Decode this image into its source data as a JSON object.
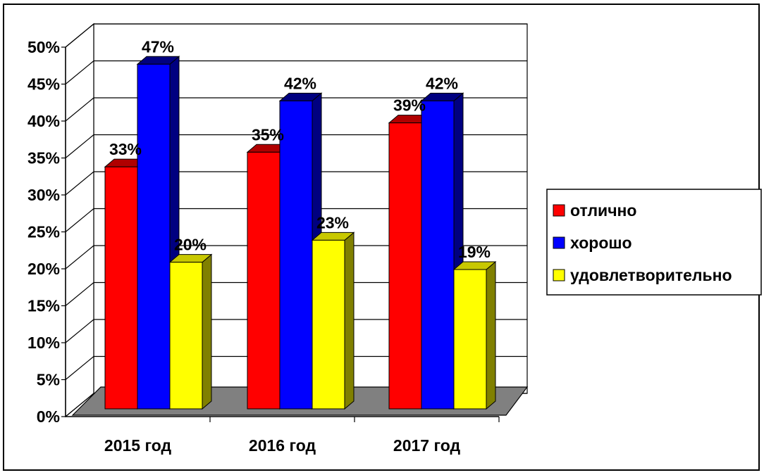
{
  "chart_data": {
    "type": "bar",
    "categories": [
      "2015 год",
      "2016 год",
      "2017 год"
    ],
    "series": [
      {
        "name": "отлично",
        "values": [
          33,
          35,
          39
        ],
        "labels": [
          "33%",
          "35%",
          "39%"
        ]
      },
      {
        "name": "хорошо",
        "values": [
          47,
          42,
          42
        ],
        "labels": [
          "47%",
          "42%",
          "42%"
        ]
      },
      {
        "name": "удовлетворительно",
        "values": [
          20,
          23,
          19
        ],
        "labels": [
          "20%",
          "23%",
          "19%"
        ]
      }
    ],
    "ylim": [
      0,
      50
    ],
    "yticks": [
      "0%",
      "5%",
      "10%",
      "15%",
      "20%",
      "25%",
      "30%",
      "35%",
      "40%",
      "45%",
      "50%"
    ],
    "grid": true,
    "legend_position": "right",
    "three_d": true,
    "colors": {
      "series": [
        "#FF0000",
        "#0000FF",
        "#FFFF00"
      ],
      "series_top": [
        "#B00000",
        "#000080",
        "#C8C800"
      ],
      "series_side": [
        "#990000",
        "#000080",
        "#808000"
      ],
      "floor": "#808080",
      "wall": "#FFFFFF",
      "grid": "#000000"
    }
  }
}
